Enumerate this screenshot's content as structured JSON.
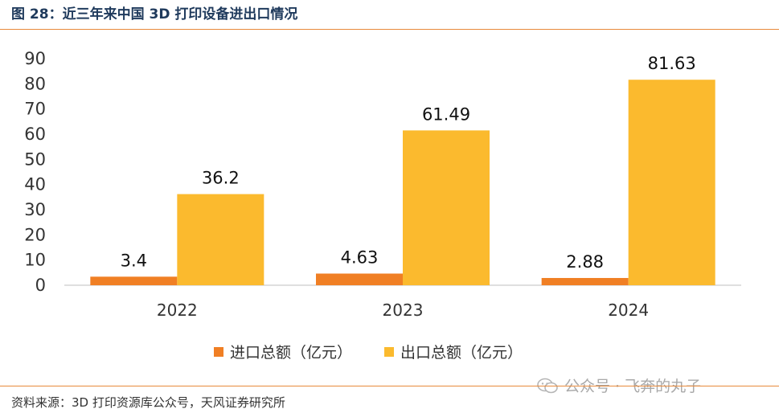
{
  "figure": {
    "title": "图 28：近三年来中国 3D 打印设备进出口情况",
    "source": "资料来源：3D 打印资源库公众号，天风证券研究所",
    "watermark": "公众号 · 飞奔的丸子",
    "watermark_icon": "wechat-icon"
  },
  "chart_data": {
    "type": "bar",
    "categories": [
      "2022",
      "2023",
      "2024"
    ],
    "series": [
      {
        "name": "进口总额（亿元）",
        "values": [
          3.4,
          4.63,
          2.88
        ],
        "color": "#f07f24"
      },
      {
        "name": "出口总额（亿元）",
        "values": [
          36.2,
          61.49,
          81.63
        ],
        "color": "#fbba2e"
      }
    ],
    "data_labels": [
      [
        "3.4",
        "4.63",
        "2.88"
      ],
      [
        "36.2",
        "61.49",
        "81.63"
      ]
    ],
    "yticks": [
      "0",
      "10",
      "20",
      "30",
      "40",
      "50",
      "60",
      "70",
      "80",
      "90"
    ],
    "ylim": [
      0,
      90
    ],
    "grid": false,
    "legend": "bottom",
    "title": "",
    "xlabel": "",
    "ylabel": ""
  }
}
